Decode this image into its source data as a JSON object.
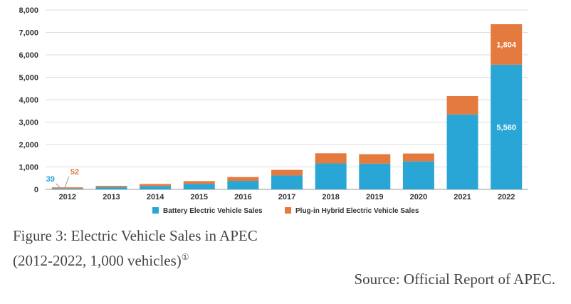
{
  "chart_data": {
    "type": "bar",
    "stacked": true,
    "categories": [
      "2012",
      "2013",
      "2014",
      "2015",
      "2016",
      "2017",
      "2018",
      "2019",
      "2020",
      "2021",
      "2022"
    ],
    "series": [
      {
        "name": "Battery Electric Vehicle Sales",
        "color": "#2aa6d6",
        "values": [
          39,
          100,
          150,
          250,
          380,
          620,
          1160,
          1150,
          1250,
          3340,
          5560
        ]
      },
      {
        "name": "Plug-in Hybrid Electric Vehicle Sales",
        "color": "#e57a3f",
        "values": [
          52,
          60,
          90,
          120,
          170,
          250,
          450,
          420,
          350,
          820,
          1804
        ]
      }
    ],
    "ylim": [
      0,
      8000
    ],
    "yticks": [
      "0",
      "1,000",
      "2,000",
      "3,000",
      "4,000",
      "5,000",
      "6,000",
      "7,000",
      "8,000"
    ],
    "grid": true,
    "legend": "bottom",
    "annotations": [
      {
        "text": "39",
        "series": 0,
        "category": "2012",
        "color": "#2aa6d6"
      },
      {
        "text": "52",
        "series": 1,
        "category": "2012",
        "color": "#e57a3f"
      },
      {
        "text": "5,560",
        "series": 0,
        "category": "2022",
        "color": "#ffffff"
      },
      {
        "text": "1,804",
        "series": 1,
        "category": "2022",
        "color": "#ffffff"
      }
    ]
  },
  "caption": {
    "line1": "Figure 3: Electric Vehicle Sales in APEC",
    "line2": "(2012-2022, 1,000 vehicles)",
    "footnote_mark": "①"
  },
  "source": "Source: Official Report of APEC."
}
